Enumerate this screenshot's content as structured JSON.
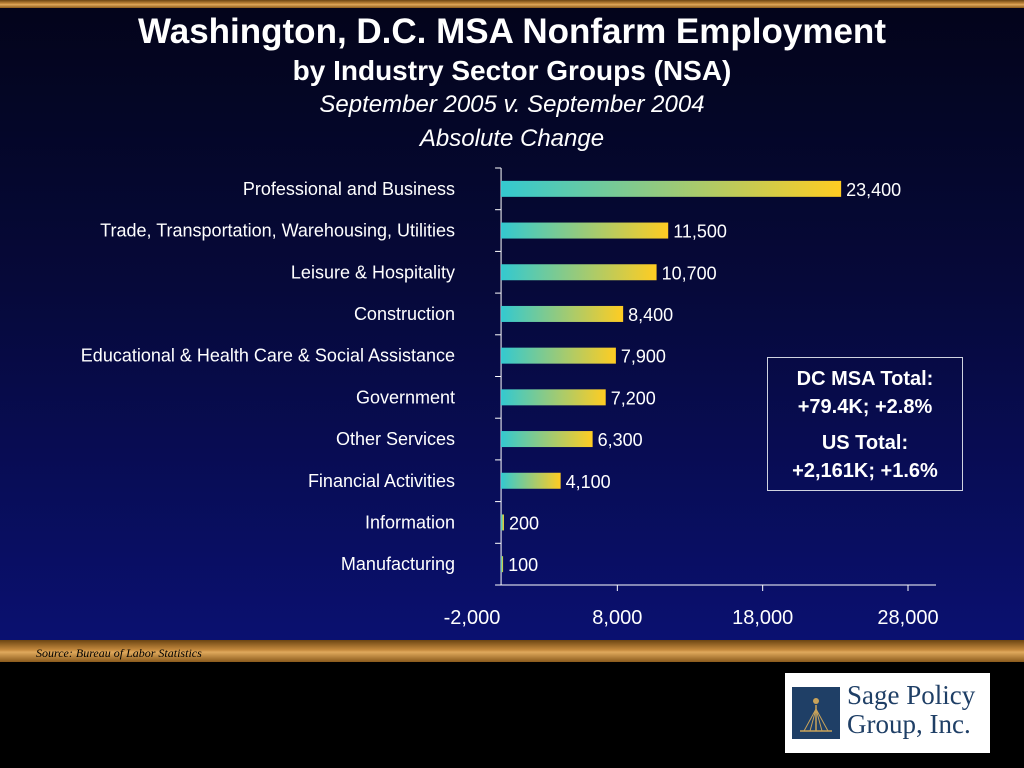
{
  "header": {
    "title": "Washington, D.C. MSA Nonfarm Employment",
    "subtitle": "by Industry Sector Groups (NSA)",
    "period": "September 2005 v. September 2004",
    "measure": "Absolute Change"
  },
  "callout": {
    "line1": "DC MSA Total:",
    "line2": "+79.4K; +2.8%",
    "line3": "US Total:",
    "line4": "+2,161K; +1.6%"
  },
  "footer": {
    "source": "Source:  Bureau of Labor Statistics"
  },
  "logo": {
    "line1": "Sage Policy",
    "line2": "Group, Inc."
  },
  "colors": {
    "bar_start": "#33c9d0",
    "bar_end": "#ffcc22",
    "background": "#06093a",
    "accent_band": "#c58a3e"
  },
  "chart_data": {
    "type": "bar",
    "orientation": "horizontal",
    "title": "",
    "xlabel": "",
    "ylabel": "",
    "categories": [
      "Professional and Business",
      "Trade, Transportation, Warehousing, Utilities",
      "Leisure & Hospitality",
      "Construction",
      "Educational & Health Care & Social Assistance",
      "Government",
      "Other Services",
      "Financial Activities",
      "Information",
      "Manufacturing"
    ],
    "values": [
      23400,
      11500,
      10700,
      8400,
      7900,
      7200,
      6300,
      4100,
      200,
      100
    ],
    "value_labels": [
      "23,400",
      "11,500",
      "10,700",
      "8,400",
      "7,900",
      "7,200",
      "6,300",
      "4,100",
      "200",
      "100"
    ],
    "xlim": [
      -2000,
      28000
    ],
    "xticks": [
      -2000,
      8000,
      18000,
      28000
    ],
    "xtick_labels": [
      "-2,000",
      "8,000",
      "18,000",
      "28,000"
    ],
    "grid": false,
    "legend": "none"
  }
}
